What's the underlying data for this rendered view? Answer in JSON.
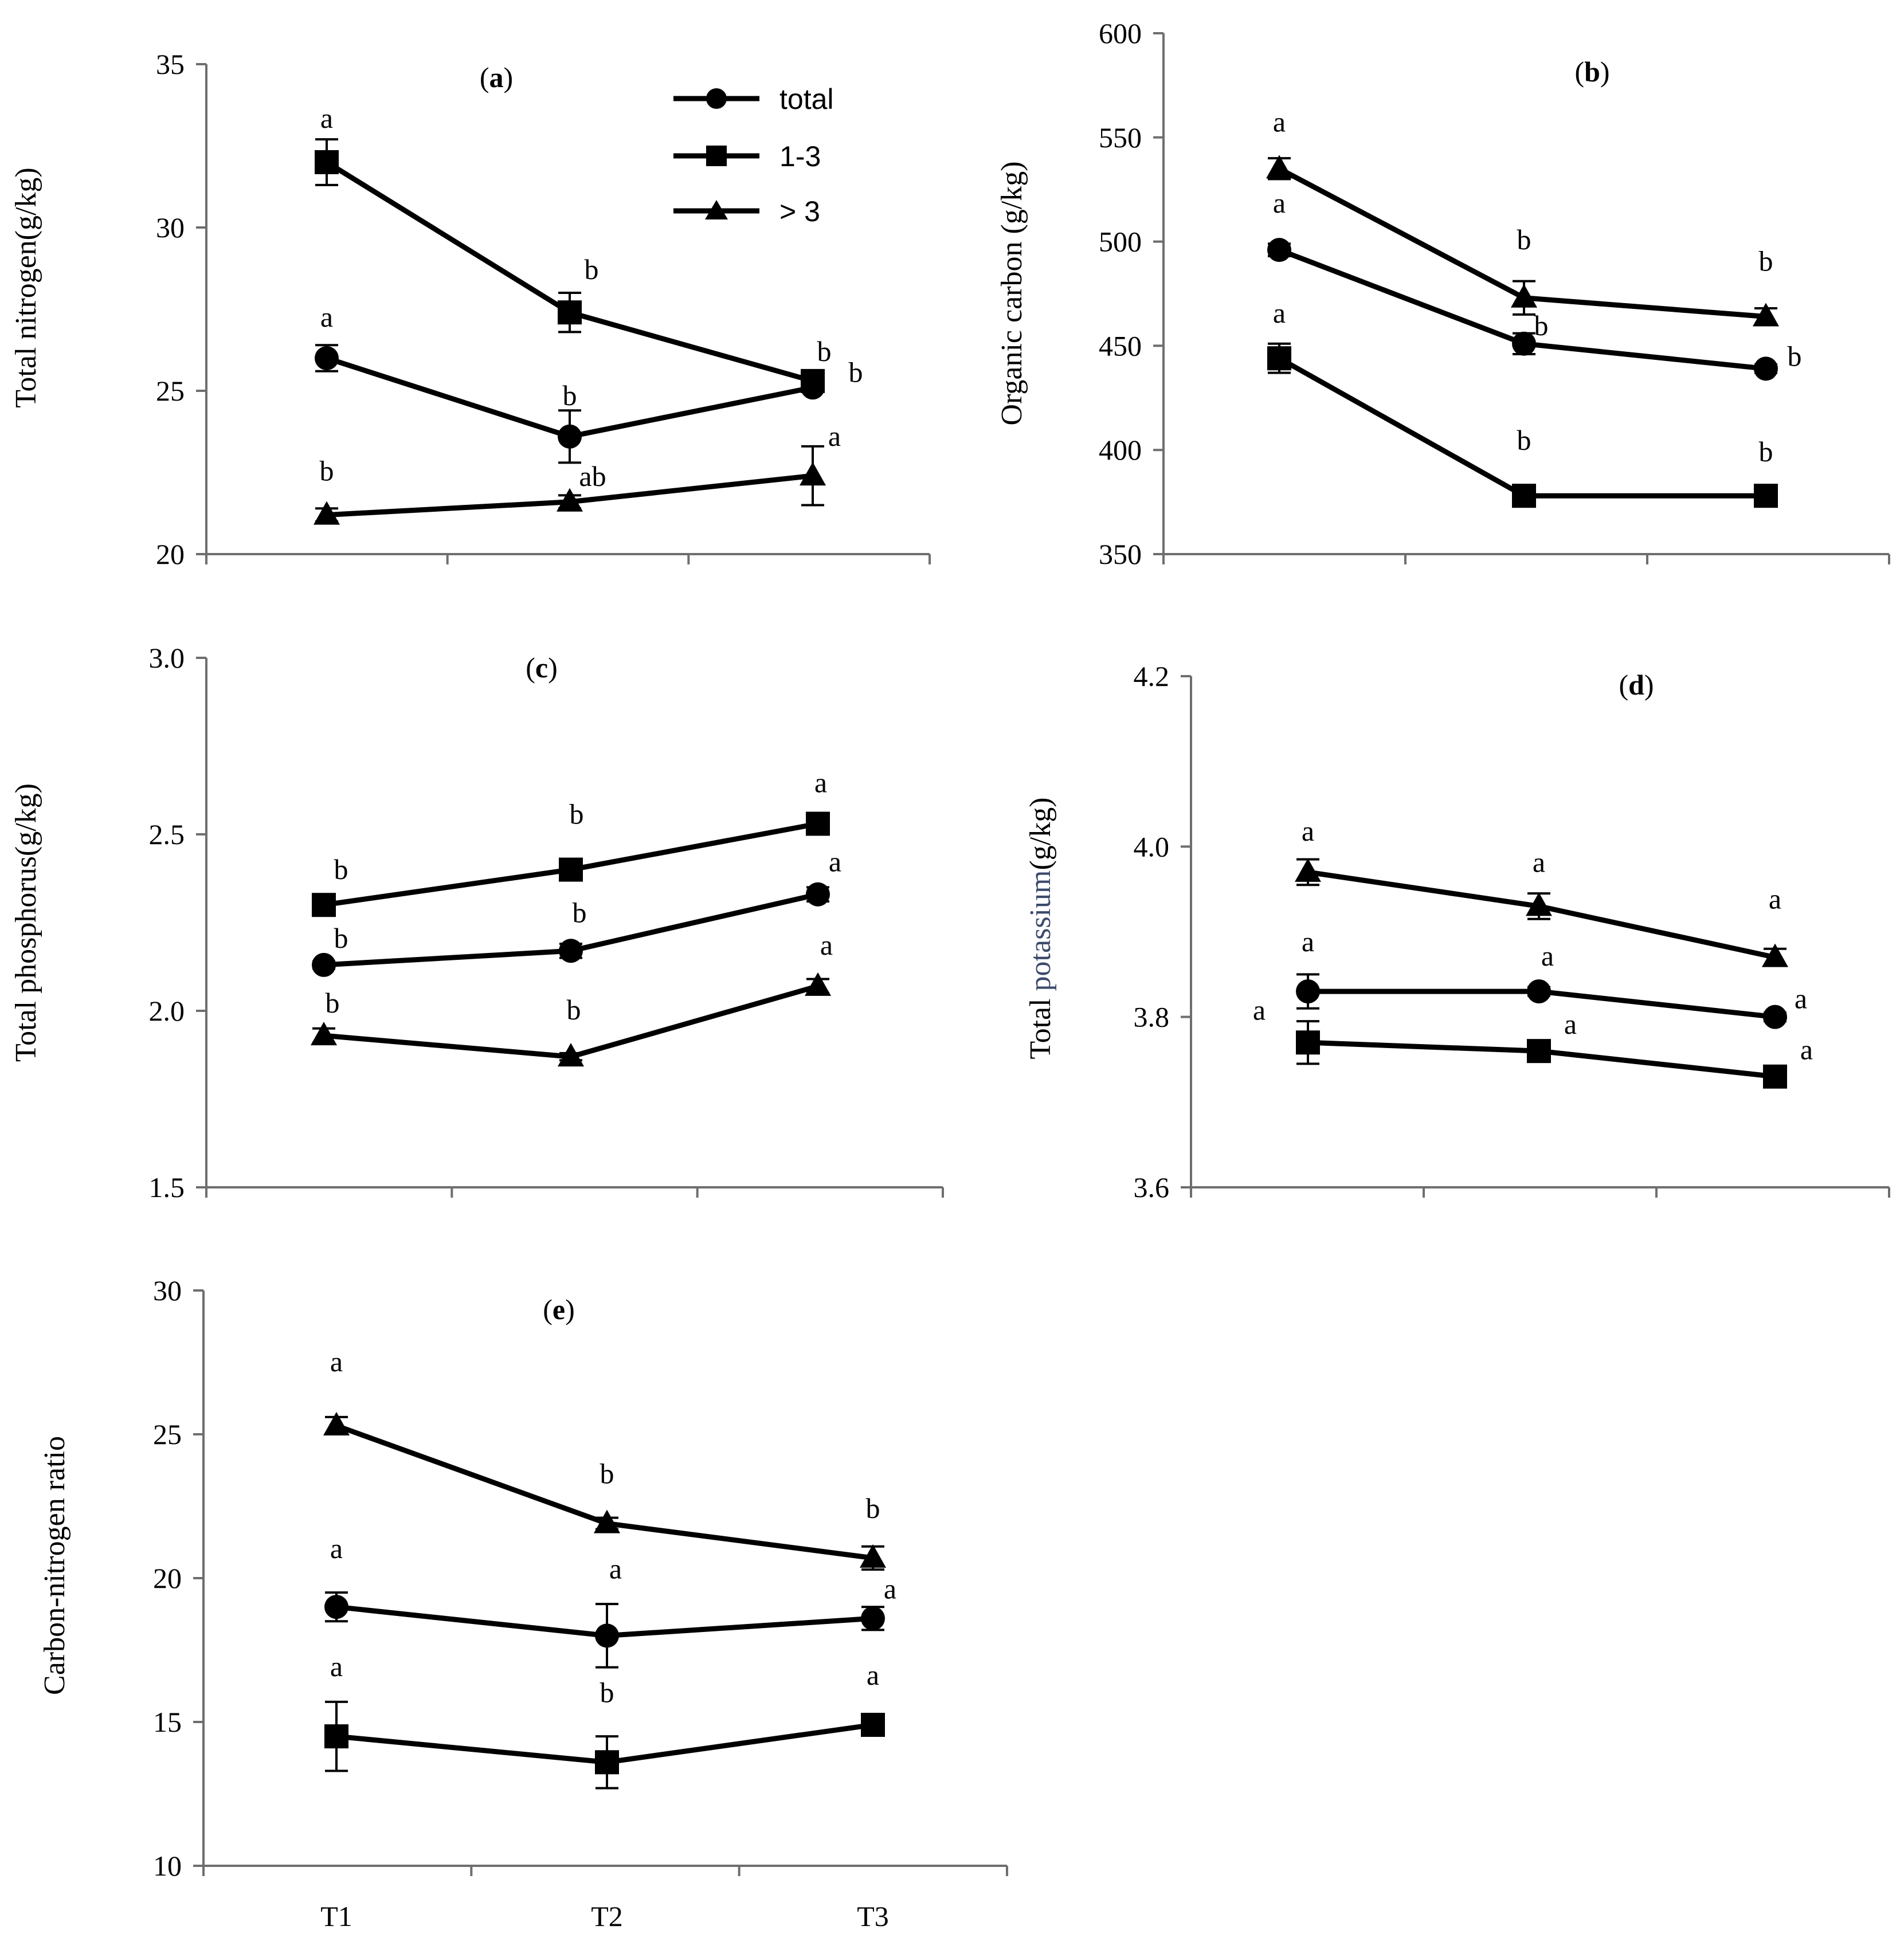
{
  "legend": [
    {
      "label": "total",
      "marker": "circle"
    },
    {
      "label": "1-3",
      "marker": "square"
    },
    {
      "label": "> 3",
      "marker": "triangle"
    }
  ],
  "chart_data": [
    {
      "id": "a",
      "type": "line",
      "title_open": "(",
      "title_letter": "a",
      "title_close": ")",
      "ylabel": "Total nitrogen(g/kg)",
      "ylim": [
        20,
        35
      ],
      "yticks": [
        "20",
        "25",
        "30",
        "35"
      ],
      "categories": [
        "T1",
        "T2",
        "T3"
      ],
      "show_xticklabels": false,
      "series": [
        {
          "name": "total",
          "marker": "circle",
          "values": [
            26.0,
            23.6,
            25.1
          ],
          "errors": [
            0.4,
            0.8,
            0.1
          ],
          "labels": [
            "a",
            "b",
            "b"
          ]
        },
        {
          "name": "1-3",
          "marker": "square",
          "values": [
            32.0,
            27.4,
            25.3
          ],
          "errors": [
            0.7,
            0.6,
            0.2
          ],
          "labels": [
            "a",
            "b",
            "b"
          ]
        },
        {
          "name": "> 3",
          "marker": "triangle",
          "values": [
            21.2,
            21.6,
            22.4
          ],
          "errors": [
            0.2,
            0.2,
            0.9
          ],
          "labels": [
            "b",
            "ab",
            "a"
          ]
        }
      ]
    },
    {
      "id": "b",
      "type": "line",
      "title_open": "(",
      "title_letter": "b",
      "title_close": ")",
      "ylabel": "Organic carbon (g/kg)",
      "ylim": [
        350,
        600
      ],
      "yticks": [
        "350",
        "400",
        "450",
        "500",
        "550",
        "600"
      ],
      "categories": [
        "T1",
        "T2",
        "T3"
      ],
      "show_xticklabels": false,
      "series": [
        {
          "name": "total",
          "marker": "circle",
          "values": [
            496,
            451,
            439
          ],
          "errors": [
            3,
            5,
            2
          ],
          "labels": [
            "a",
            "b",
            "b"
          ]
        },
        {
          "name": "1-3",
          "marker": "square",
          "values": [
            444,
            378,
            378
          ],
          "errors": [
            7,
            3,
            2
          ],
          "labels": [
            "a",
            "b",
            "b"
          ]
        },
        {
          "name": "> 3",
          "marker": "triangle",
          "values": [
            535,
            473,
            464
          ],
          "errors": [
            5,
            8,
            4
          ],
          "labels": [
            "a",
            "b",
            "b"
          ]
        }
      ]
    },
    {
      "id": "c",
      "type": "line",
      "title_open": "(",
      "title_letter": "c",
      "title_close": ")",
      "ylabel": "Total phosphorus(g/kg)",
      "ylim": [
        1.5,
        3.0
      ],
      "yticks": [
        "1.5",
        "2.0",
        "2.5",
        "3.0"
      ],
      "categories": [
        "T1",
        "T2",
        "T3"
      ],
      "show_xticklabels": false,
      "series": [
        {
          "name": "total",
          "marker": "circle",
          "values": [
            2.13,
            2.17,
            2.33
          ],
          "errors": [
            0.01,
            0.02,
            0.02
          ],
          "labels": [
            "b",
            "b",
            "a"
          ]
        },
        {
          "name": "1-3",
          "marker": "square",
          "values": [
            2.3,
            2.4,
            2.53
          ],
          "errors": [
            0.01,
            0.01,
            0.01
          ],
          "labels": [
            "b",
            "b",
            "a"
          ]
        },
        {
          "name": "> 3",
          "marker": "triangle",
          "values": [
            1.93,
            1.87,
            2.07
          ],
          "errors": [
            0.02,
            0.01,
            0.02
          ],
          "labels": [
            "b",
            "b",
            "a"
          ]
        }
      ]
    },
    {
      "id": "d",
      "type": "line",
      "title_open": "(",
      "title_letter": "d",
      "title_close": ")",
      "ylabel_prefix": "Total ",
      "ylabel_colored": "potassium",
      "ylabel_suffix": "(g/kg)",
      "ylabel_colored_color": "#3b4a6b",
      "ylim": [
        3.6,
        4.2
      ],
      "yticks": [
        "3.6",
        "3.8",
        "4.0",
        "4.2"
      ],
      "categories": [
        "T1",
        "T2",
        "T3"
      ],
      "show_xticklabels": false,
      "series": [
        {
          "name": "total",
          "marker": "circle",
          "values": [
            3.83,
            3.83,
            3.8
          ],
          "errors": [
            0.02,
            0.005,
            0.005
          ],
          "labels": [
            "a",
            "a",
            "a"
          ]
        },
        {
          "name": "1-3",
          "marker": "square",
          "values": [
            3.77,
            3.76,
            3.73
          ],
          "errors": [
            0.025,
            0.005,
            0.005
          ],
          "labels": [
            "a",
            "a",
            "a"
          ]
        },
        {
          "name": "> 3",
          "marker": "triangle",
          "values": [
            3.97,
            3.93,
            3.87
          ],
          "errors": [
            0.015,
            0.015,
            0.01
          ],
          "labels": [
            "a",
            "a",
            "a"
          ]
        }
      ]
    },
    {
      "id": "e",
      "type": "line",
      "title_open": "(",
      "title_letter": "e",
      "title_close": ")",
      "ylabel": "Carbon-nitrogen ratio",
      "ylim": [
        10,
        30
      ],
      "yticks": [
        "10",
        "15",
        "20",
        "25",
        "30"
      ],
      "categories": [
        "T1",
        "T2",
        "T3"
      ],
      "show_xticklabels": true,
      "series": [
        {
          "name": "total",
          "marker": "circle",
          "values": [
            19.0,
            18.0,
            18.6
          ],
          "errors": [
            0.5,
            1.1,
            0.4
          ],
          "labels": [
            "a",
            "a",
            "a"
          ]
        },
        {
          "name": "1-3",
          "marker": "square",
          "values": [
            14.5,
            13.6,
            14.9
          ],
          "errors": [
            1.2,
            0.9,
            0.2
          ],
          "labels": [
            "a",
            "b",
            "a"
          ]
        },
        {
          "name": "> 3",
          "marker": "triangle",
          "values": [
            25.3,
            21.9,
            20.7
          ],
          "errors": [
            0.3,
            0.2,
            0.4
          ],
          "labels": [
            "a",
            "b",
            "b"
          ]
        }
      ]
    }
  ]
}
